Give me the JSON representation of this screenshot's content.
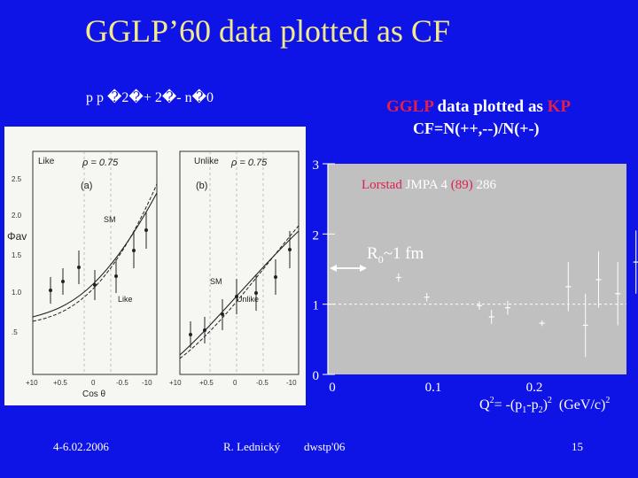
{
  "slide": {
    "title": "GGLP’60 data plotted as CF",
    "reaction": "p p �2�+ 2�- n�0",
    "footer": {
      "date": "4-6.02.2006",
      "author": "R. Lednický",
      "event": "dwstp'06",
      "page": "15"
    }
  },
  "colors": {
    "background": "#0f14e6",
    "title": "#f3e98c",
    "accent_red": "#e0204a",
    "plot_gray": "#c0c0c0"
  },
  "left_plot": {
    "panel_a": {
      "label": "Like",
      "tag": "(a)",
      "rho": "ρ = 0.75"
    },
    "panel_b": {
      "label": "Unlike",
      "tag": "(b)",
      "rho": "ρ = 0.75"
    },
    "ylabel": "Φav",
    "xlabel": "Cos θ",
    "yticks": [
      "2.5",
      "2.0",
      "1.5",
      "1.0",
      ".5"
    ],
    "xticks_a": [
      "+10",
      "+0.5",
      "0",
      "-0.5",
      "-10"
    ],
    "xticks_b": [
      "+10",
      "+0.5",
      "0",
      "-0.5",
      "-10"
    ],
    "curve_labels": {
      "sm_a": "SM",
      "like": "Like",
      "sm_b": "SM",
      "unlike": "Unlike"
    }
  },
  "chart_data": {
    "type": "scatter",
    "title": "GGLP  data plotted as KP",
    "title_parts": {
      "red1": "GGLP",
      "white": "data plotted as",
      "red2": "KP"
    },
    "subtitle": "CF=N(++,--)/N(+-)",
    "xlabel": "Q²= -(p₁-p₂)²  (GeV/c)²",
    "xlabel_parts": {
      "q": "Q",
      "mid": "= -(p",
      "p1": "1",
      "minus": "-p",
      "p2": "2",
      "paren": ")",
      "units": "(GeV/c)",
      "sq": "2"
    },
    "xlim": [
      0,
      0.3
    ],
    "ylim": [
      0,
      3
    ],
    "xticks": [
      0,
      0.1,
      0.2
    ],
    "xtick_labels": [
      "0",
      "0.1",
      "0.2"
    ],
    "yticks": [
      0,
      1,
      2,
      3
    ],
    "ytick_labels": [
      "0",
      "1",
      "2",
      "3"
    ],
    "reference_line": 1,
    "reference_label": "Lorstad JMPA 4 (89) 286",
    "reference_parts": {
      "a": "Lorstad",
      "b": "JMPA 4",
      "c": "(89)",
      "d": "286"
    },
    "annotation": "R0~1 fm",
    "annotation_parts": {
      "r": "R",
      "sub": "0",
      "rest": "~1 fm"
    },
    "series": [
      {
        "x": [
          0.07,
          0.098,
          0.15,
          0.162,
          0.178,
          0.212,
          0.238,
          0.255,
          0.268,
          0.287,
          0.305
        ],
        "y": [
          1.38,
          1.1,
          0.98,
          0.82,
          0.95,
          0.73,
          1.25,
          0.7,
          1.35,
          1.15,
          1.6
        ],
        "err": [
          0.06,
          0.06,
          0.06,
          0.1,
          0.1,
          0.04,
          0.35,
          0.45,
          0.4,
          0.45,
          0.45
        ]
      }
    ]
  }
}
